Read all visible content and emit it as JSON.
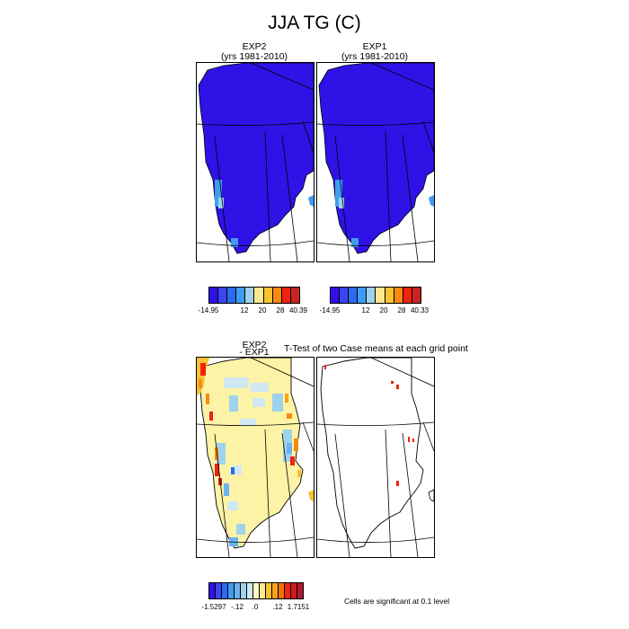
{
  "title": "JJA TG (C)",
  "panels": [
    {
      "name": "EXP2",
      "subtitle": "(yrs 1981-2010)"
    },
    {
      "name": "EXP1",
      "subtitle": "(yrs 1981-2010)"
    }
  ],
  "diff_panel": {
    "line1": "EXP2",
    "line2": "- EXP1"
  },
  "ttest_title": "T-Test of two Case means at each grid point",
  "significance_note": "Cells are significant at 0.1 level",
  "colorbars": {
    "exp2": {
      "colors": [
        "#2f12e6",
        "#3d45f0",
        "#2a6cf0",
        "#3f9cf2",
        "#9fd2ec",
        "#fde98f",
        "#f8c232",
        "#f88a12",
        "#ee2311",
        "#c92424"
      ],
      "labels": [
        "-14.95",
        "12",
        "20",
        "28",
        "40.39"
      ]
    },
    "exp1": {
      "colors": [
        "#2f12e6",
        "#3d45f0",
        "#2a6cf0",
        "#3f9cf2",
        "#9fd2ec",
        "#fde98f",
        "#f8c232",
        "#f88a12",
        "#ee2311",
        "#c92424"
      ],
      "labels": [
        "-14.95",
        "12",
        "20",
        "28",
        "40.33"
      ]
    },
    "diff": {
      "colors": [
        "#2f12e6",
        "#3d45f0",
        "#2a6cf0",
        "#3f9cf2",
        "#6db2ef",
        "#9fd2ec",
        "#cfe8f2",
        "#fef7c0",
        "#fde98f",
        "#f8c232",
        "#f8a21f",
        "#f2700c",
        "#ee2311",
        "#d01b1b",
        "#b01a30"
      ],
      "labels": [
        "-1.5297",
        "-.12",
        ".0",
        ".12",
        "1.7151"
      ]
    }
  }
}
